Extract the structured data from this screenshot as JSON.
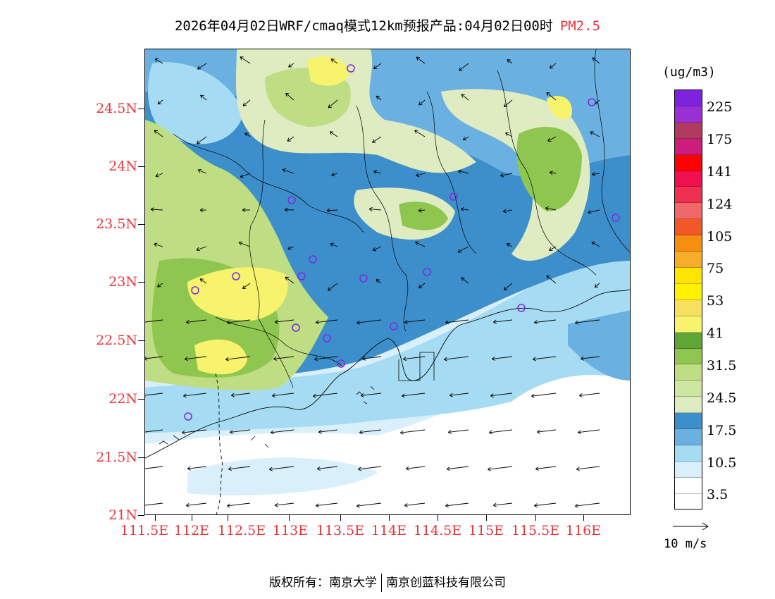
{
  "title": {
    "main": "2026年04月02日WRF/cmaq模式12km预报产品:04月02日00时",
    "pollutant": "PM2.5"
  },
  "map": {
    "lon_labels": [
      "111.5E",
      "112E",
      "112.5E",
      "113E",
      "113.5E",
      "114E",
      "114.5E",
      "115E",
      "115.5E",
      "116E"
    ],
    "lat_labels": [
      "24.5N",
      "24N",
      "23.5N",
      "23N",
      "22.5N",
      "22N",
      "21.5N",
      "21N"
    ],
    "colors": {
      "sea": "#ffffff",
      "very_low": "#d9effa",
      "low": "#a6dcf3",
      "mid_low": "#6ab0e0",
      "blue": "#3d8fcb",
      "pale_green": "#dfebc1",
      "light_green": "#bfdd82",
      "green": "#8fc64f",
      "dark_green": "#5ea736",
      "yellow": "#f7f36c",
      "bright_yellow": "#fff200",
      "station": "#7b2ee0"
    }
  },
  "legend": {
    "unit": "(ug/m3)",
    "colors": [
      "#7f22e0",
      "#9b2fd6",
      "#b23a5e",
      "#cc1c7c",
      "#ff0000",
      "#f01050",
      "#f03050",
      "#f06868",
      "#f05828",
      "#f78e10",
      "#f7ad28",
      "#ffe400",
      "#fff200",
      "#f7e060",
      "#f7f36c",
      "#5ea736",
      "#8fc64f",
      "#bfdd82",
      "#cde6a0",
      "#dfebc1",
      "#3d8fcb",
      "#6ab0e0",
      "#a6dcf3",
      "#d9effa",
      "#ffffff"
    ],
    "labels": [
      "225",
      "175",
      "141",
      "124",
      "105",
      "75",
      "53",
      "41",
      "31.5",
      "24.5",
      "17.5",
      "10.5",
      "3.5"
    ],
    "wind_reference": "10 m/s"
  },
  "footer": {
    "left": "版权所有：南京大学",
    "right": "南京创蓝科技有限公司"
  }
}
